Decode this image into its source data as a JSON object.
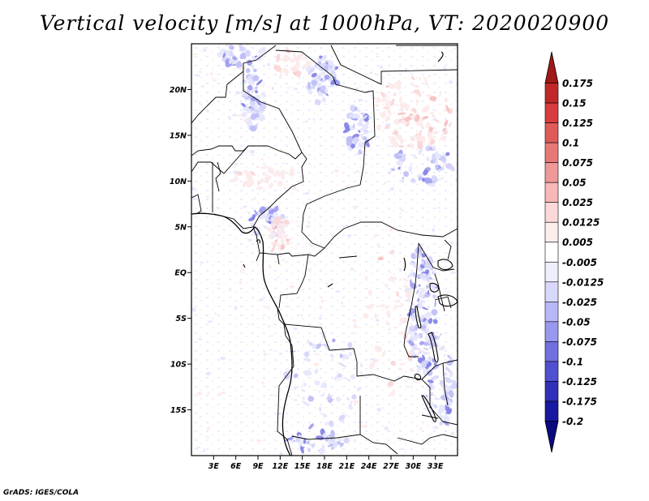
{
  "title": "Vertical velocity [m/s] at 1000hPa, VT: 2020020900",
  "credit": "GrADS: IGES/COLA",
  "map": {
    "lon_range": [
      0,
      36
    ],
    "lat_range": [
      -20,
      25
    ],
    "lon_ticks": [
      {
        "value": 3,
        "label": "3E"
      },
      {
        "value": 6,
        "label": "6E"
      },
      {
        "value": 9,
        "label": "9E"
      },
      {
        "value": 12,
        "label": "12E"
      },
      {
        "value": 15,
        "label": "15E"
      },
      {
        "value": 18,
        "label": "18E"
      },
      {
        "value": 21,
        "label": "21E"
      },
      {
        "value": 24,
        "label": "24E"
      },
      {
        "value": 27,
        "label": "27E"
      },
      {
        "value": 30,
        "label": "30E"
      },
      {
        "value": 33,
        "label": "33E"
      }
    ],
    "lat_ticks": [
      {
        "value": 20,
        "label": "20N"
      },
      {
        "value": 15,
        "label": "15N"
      },
      {
        "value": 10,
        "label": "10N"
      },
      {
        "value": 5,
        "label": "5N"
      },
      {
        "value": 0,
        "label": "EQ"
      },
      {
        "value": -5,
        "label": "5S"
      },
      {
        "value": -10,
        "label": "10S"
      },
      {
        "value": -15,
        "label": "15S"
      }
    ]
  },
  "colorbar": {
    "labels": [
      "0.175",
      "0.15",
      "0.125",
      "0.1",
      "0.075",
      "0.05",
      "0.025",
      "0.0125",
      "0.005",
      "-0.005",
      "-0.0125",
      "-0.025",
      "-0.05",
      "-0.075",
      "-0.1",
      "-0.125",
      "-0.175",
      "-0.2"
    ],
    "colors": [
      "#a01818",
      "#c02828",
      "#d83c3c",
      "#e05a5a",
      "#e87878",
      "#f09898",
      "#f8b8b8",
      "#fcd8d8",
      "#fdeeee",
      "#ffffff",
      "#eeeeff",
      "#d8d8fc",
      "#b8b8f8",
      "#9898f0",
      "#7070e0",
      "#5050d0",
      "#3030b8",
      "#1818a0",
      "#0a0a80"
    ]
  }
}
